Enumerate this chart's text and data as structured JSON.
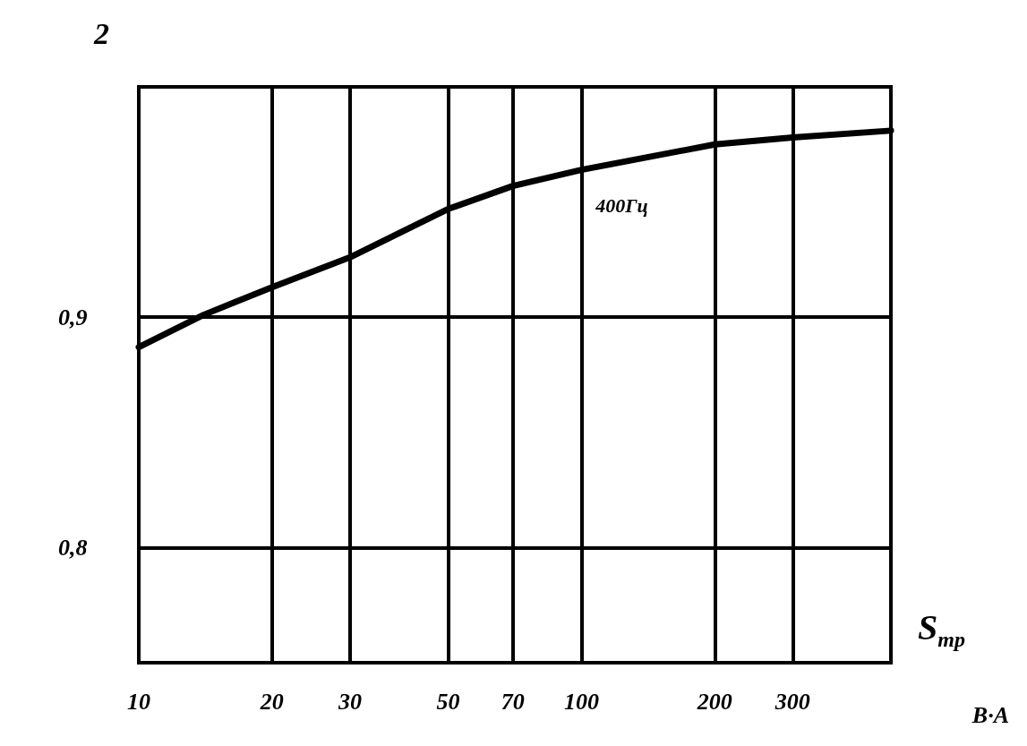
{
  "chart_data": {
    "type": "line",
    "title": "2",
    "xlabel": "S$_{тр}$",
    "log": "x",
    "xlim": [
      10,
      500
    ],
    "xticks": [
      10,
      20,
      30,
      50,
      70,
      100,
      200,
      300
    ],
    "ylim": [
      0.75,
      1.0
    ],
    "yticks": [
      {
        "value": 0.8,
        "label": "0,8"
      },
      {
        "value": 0.9,
        "label": "0,9"
      }
    ],
    "grid": true,
    "marker": "none",
    "line_style": "solid",
    "x": [
      10,
      14,
      20,
      30,
      50,
      70,
      100,
      200,
      300,
      500
    ],
    "series": [
      {
        "name": "400Гц",
        "color": "#000000",
        "values": [
          0.887,
          0.901,
          0.913,
          0.926,
          0.947,
          0.957,
          0.964,
          0.975,
          0.978,
          0.981
        ]
      }
    ],
    "annotations": [
      "В·А"
    ]
  }
}
